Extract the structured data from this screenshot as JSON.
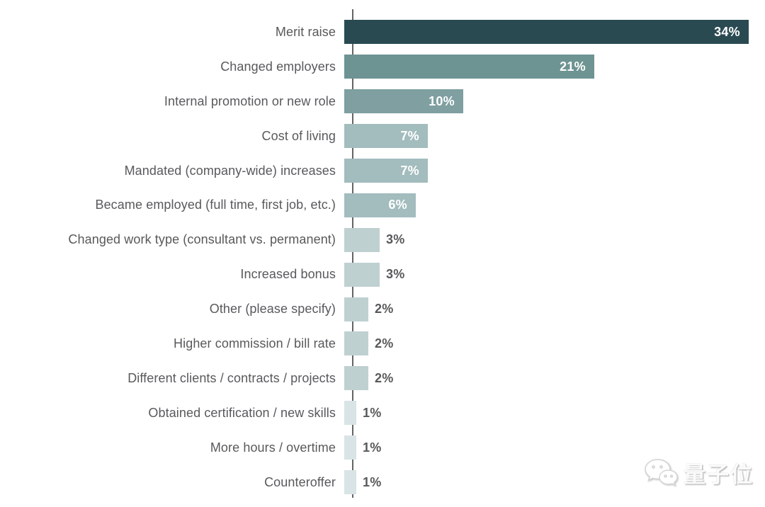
{
  "chart_data": {
    "type": "bar",
    "orientation": "horizontal",
    "title": "",
    "xlabel": "",
    "ylabel": "",
    "categories": [
      "Merit raise",
      "Changed employers",
      "Internal promotion or new role",
      "Cost of living",
      "Mandated (company-wide) increases",
      "Became employed (full time, first job, etc.)",
      "Changed work type (consultant vs. permanent)",
      "Increased bonus",
      "Other (please specify)",
      "Higher commission / bill rate",
      "Different clients / contracts / projects",
      "Obtained certification / new skills",
      "More hours / overtime",
      "Counteroffer"
    ],
    "values": [
      34,
      21,
      10,
      7,
      7,
      6,
      3,
      3,
      2,
      2,
      2,
      1,
      1,
      1
    ],
    "value_labels": [
      "34%",
      "21%",
      "10%",
      "7%",
      "7%",
      "6%",
      "3%",
      "3%",
      "2%",
      "2%",
      "2%",
      "1%",
      "1%",
      "1%"
    ],
    "value_suffix": "%",
    "xlim": [
      0,
      34
    ],
    "grid": false,
    "legend": false,
    "bar_colors": [
      "#2a4a52",
      "#6e9393",
      "#7f9fa0",
      "#a3bcbe",
      "#a3bcbe",
      "#a3bcbe",
      "#bfd0d1",
      "#bfd0d1",
      "#bfd0d1",
      "#bfd0d1",
      "#bfd0d1",
      "#d8e4e5",
      "#d8e4e5",
      "#d8e4e5"
    ],
    "inside_label_min_value": 6,
    "label_color_inside": "#ffffff",
    "label_color_outside": "#58595b",
    "axis_color": "#636466",
    "background": "#ffffff"
  },
  "watermark": {
    "text": "量子位"
  }
}
